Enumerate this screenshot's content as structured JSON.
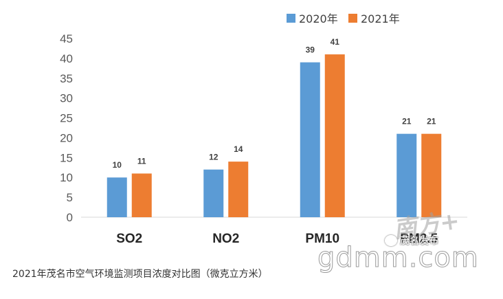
{
  "chart_data": {
    "type": "bar",
    "categories": [
      "SO2",
      "NO2",
      "PM10",
      "PM2.5"
    ],
    "series": [
      {
        "name": "2020年",
        "values": [
          10,
          12,
          39,
          21
        ],
        "color": "#5B9BD5"
      },
      {
        "name": "2021年",
        "values": [
          11,
          14,
          41,
          21
        ],
        "color": "#ED7D31"
      }
    ],
    "ylim": [
      0,
      45
    ],
    "yticks": [
      0,
      5,
      10,
      15,
      20,
      25,
      30,
      35,
      40,
      45
    ],
    "legend": "top-right",
    "grid": false,
    "data_labels": true
  },
  "caption": "2021年茂名市空气环境监测项目浓度对比图（微克立方米）",
  "watermark": {
    "site": "gdmm.com",
    "logo_text": "南方+",
    "account": "茂名发布"
  }
}
